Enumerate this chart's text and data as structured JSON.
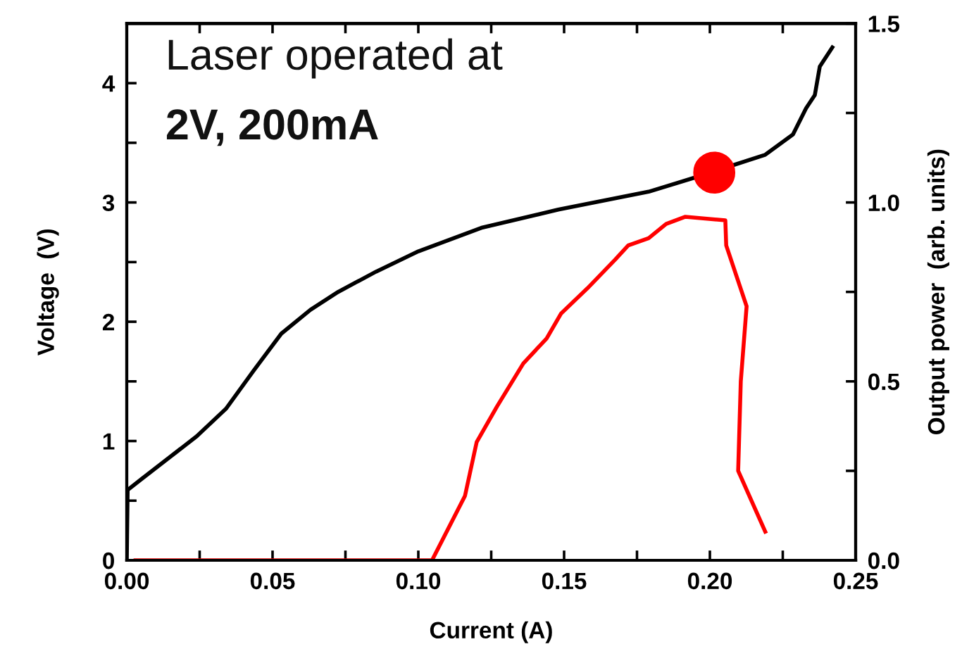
{
  "chart_data": {
    "type": "line",
    "xlabel": "Current (A)",
    "ylabel": "Voltage  (V)",
    "y2label": "Output power  (arb. units)",
    "annotations": [
      "Laser operated at",
      "2V, 200mA"
    ],
    "xlim": [
      0,
      0.25
    ],
    "ylim": [
      0,
      4.5
    ],
    "y2lim": [
      0,
      1.5
    ],
    "xticks": [
      "0.00",
      {
        "value": 0.025,
        "label": null
      },
      {
        "value": 0.05,
        "label": "0.05"
      },
      {
        "value": 0.075,
        "label": null
      },
      {
        "value": 0.1,
        "label": "0.10"
      },
      {
        "value": 0.125,
        "label": null
      },
      {
        "value": 0.15,
        "label": "0.15"
      },
      {
        "value": 0.175,
        "label": null
      },
      {
        "value": 0.2,
        "label": "0.20"
      },
      {
        "value": 0.225,
        "label": null
      },
      {
        "value": 0.25,
        "label": "0.25"
      }
    ],
    "yticks": [
      0,
      {
        "value": 0.5,
        "label": null
      },
      1,
      {
        "value": 1.5,
        "label": null
      },
      2,
      {
        "value": 2.5,
        "label": null
      },
      3,
      {
        "value": 3.5,
        "label": null
      },
      4
    ],
    "y2ticks": [
      {
        "value": 0,
        "label": "0.0"
      },
      {
        "value": 0.25,
        "label": null
      },
      0.5,
      {
        "value": 0.75,
        "label": null
      },
      {
        "value": 1,
        "label": "1.0"
      },
      {
        "value": 1.25,
        "label": null
      },
      1.5
    ],
    "grid": false,
    "legend": false,
    "series": [
      {
        "color": "#000000",
        "axis": "y",
        "x": [
          0,
          0.0003,
          0.005,
          0.0145,
          0.024,
          0.034,
          0.0435,
          0.053,
          0.063,
          0.0725,
          0.0855,
          0.1,
          0.122,
          0.148,
          0.179,
          0.195,
          0.219,
          0.2285,
          0.233,
          0.236,
          0.2377,
          0.242
        ],
        "values": [
          0,
          0.59,
          0.68,
          0.86,
          1.04,
          1.27,
          1.59,
          1.9,
          2.1,
          2.25,
          2.42,
          2.59,
          2.79,
          2.94,
          3.09,
          3.21,
          3.4,
          3.57,
          3.79,
          3.9,
          4.14,
          4.3
        ]
      },
      {
        "color": "#ff0000",
        "axis": "y2",
        "x": [
          0.003,
          0.1047,
          0.116,
          0.12,
          0.127,
          0.136,
          0.144,
          0.149,
          0.158,
          0.1675,
          0.172,
          0.179,
          0.185,
          0.1916,
          0.2053,
          0.2056,
          0.2126,
          0.2106,
          0.2097,
          0.219
        ],
        "values": [
          0,
          0,
          0.18,
          0.33,
          0.43,
          0.55,
          0.62,
          0.69,
          0.76,
          0.84,
          0.88,
          0.9,
          0.94,
          0.96,
          0.95,
          0.88,
          0.71,
          0.5,
          0.25,
          0.08
        ]
      },
      {
        "type": "scatter",
        "color": "#ff0000",
        "axis": "y",
        "marker": "circle",
        "x": [
          0.2015
        ],
        "values": [
          3.25
        ]
      }
    ]
  }
}
